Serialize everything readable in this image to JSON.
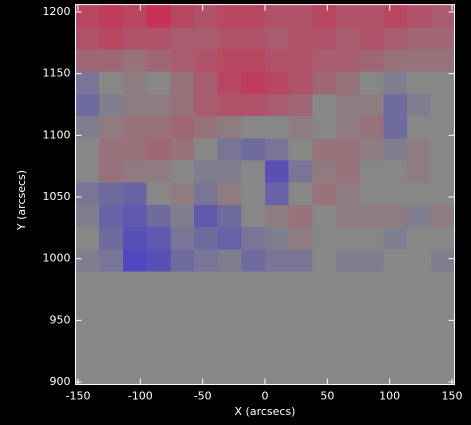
{
  "chart_data": {
    "type": "heatmap",
    "xlabel": "X (arcsecs)",
    "ylabel": "Y (arcsecs)",
    "xlim": [
      -152,
      152
    ],
    "ylim": [
      898,
      1206
    ],
    "xticks": [
      -150,
      -100,
      -50,
      0,
      50,
      100,
      150
    ],
    "yticks": [
      900,
      950,
      1000,
      1050,
      1100,
      1150,
      1200
    ],
    "x_edges": [
      -152,
      -133,
      -114,
      -95,
      -76,
      -57,
      -38,
      -19,
      0,
      19,
      38,
      57,
      76,
      95,
      114,
      133,
      152
    ],
    "y_edges": [
      898,
      990,
      1008,
      1026,
      1044,
      1062,
      1080,
      1098,
      1116,
      1134,
      1152,
      1170,
      1188,
      1206
    ],
    "zlim": [
      -1,
      1
    ],
    "colors": {
      "min": "#3a2bd6",
      "mid": "#878787",
      "max": "#d81c4a"
    },
    "z": [
      [
        0,
        0,
        0,
        0,
        0,
        0,
        0,
        0,
        0,
        0,
        0,
        0,
        0,
        0,
        0,
        0
      ],
      [
        -0.1,
        -0.2,
        -0.7,
        -0.6,
        -0.3,
        -0.2,
        -0.1,
        -0.3,
        -0.2,
        -0.2,
        0,
        -0.1,
        -0.1,
        0,
        0,
        -0.1
      ],
      [
        0,
        -0.3,
        -0.6,
        -0.5,
        -0.2,
        -0.3,
        -0.4,
        -0.2,
        -0.1,
        0.1,
        0,
        0,
        0,
        -0.1,
        0,
        0
      ],
      [
        -0.1,
        -0.4,
        -0.5,
        -0.3,
        -0.1,
        -0.5,
        -0.3,
        0,
        0.1,
        0.2,
        0,
        0.1,
        0.1,
        0.1,
        -0.1,
        0.1
      ],
      [
        -0.2,
        -0.3,
        -0.4,
        0,
        0.1,
        -0.2,
        0.1,
        0,
        -0.4,
        0,
        0.2,
        0.1,
        0,
        0,
        0,
        0
      ],
      [
        0,
        0.2,
        0.1,
        0.1,
        0,
        -0.1,
        -0.1,
        0,
        -0.6,
        -0.2,
        0.1,
        0.2,
        0,
        0,
        0.1,
        0
      ],
      [
        0,
        0.2,
        0.2,
        0.3,
        0.2,
        0,
        -0.2,
        -0.3,
        -0.2,
        0,
        0.2,
        0.2,
        0.1,
        -0.1,
        0.1,
        0
      ],
      [
        -0.1,
        0.1,
        0.2,
        0.2,
        0.3,
        0.2,
        0.1,
        0,
        0,
        0.1,
        0,
        0.1,
        0.2,
        -0.3,
        0,
        0
      ],
      [
        -0.3,
        -0.1,
        0.1,
        0.1,
        0.2,
        0.4,
        0.5,
        0.5,
        0.4,
        0.3,
        0,
        0.1,
        0.1,
        -0.3,
        -0.1,
        0
      ],
      [
        -0.2,
        0,
        0.1,
        0,
        0.2,
        0.4,
        0.6,
        0.7,
        0.6,
        0.5,
        0.3,
        0.2,
        0,
        -0.1,
        0,
        0
      ],
      [
        0.3,
        0.3,
        0.2,
        0.3,
        0.4,
        0.5,
        0.6,
        0.6,
        0.5,
        0.5,
        0.4,
        0.4,
        0.3,
        0.2,
        0.2,
        0.2
      ],
      [
        0.5,
        0.6,
        0.5,
        0.5,
        0.4,
        0.4,
        0.5,
        0.5,
        0.4,
        0.5,
        0.5,
        0.4,
        0.5,
        0.4,
        0.3,
        0.3
      ],
      [
        0.6,
        0.7,
        0.6,
        0.8,
        0.6,
        0.5,
        0.6,
        0.6,
        0.5,
        0.5,
        0.6,
        0.5,
        0.5,
        0.6,
        0.5,
        0.4
      ]
    ]
  }
}
